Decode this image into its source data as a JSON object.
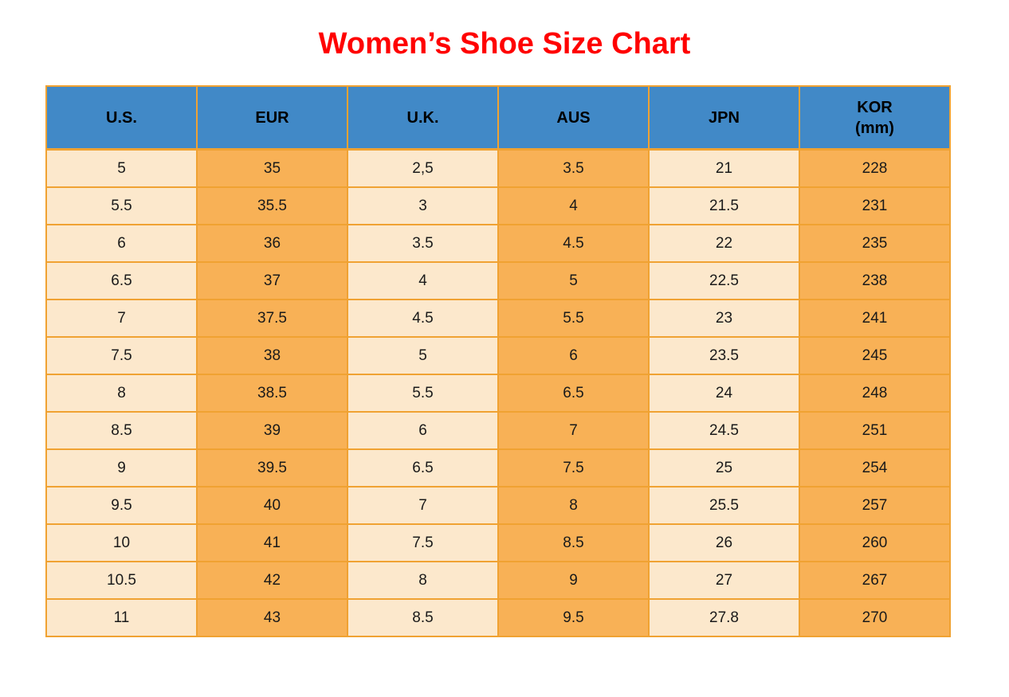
{
  "title": "Women’s Shoe Size Chart",
  "colors": {
    "title": "#FF0000",
    "header_bg": "#4189C7",
    "header_text": "#000000",
    "cell_orange": "#F8B156",
    "cell_cream": "#FCE8CC",
    "border": "#F0A232",
    "cell_text": "#1A1A1A",
    "page_bg": "#FFFFFF"
  },
  "chart_data": {
    "type": "table",
    "title": "Women’s Shoe Size Chart",
    "columns": [
      "U.S.",
      "EUR",
      "U.K.",
      "AUS",
      "JPN",
      "KOR (mm)"
    ],
    "header_lines": [
      [
        "U.S."
      ],
      [
        "EUR"
      ],
      [
        "U.K."
      ],
      [
        "AUS"
      ],
      [
        "JPN"
      ],
      [
        "KOR",
        "(mm)"
      ]
    ],
    "column_tones": [
      "cream",
      "orange",
      "cream",
      "orange",
      "cream",
      "orange"
    ],
    "rows": [
      [
        "5",
        "35",
        "2,5",
        "3.5",
        "21",
        "228"
      ],
      [
        "5.5",
        "35.5",
        "3",
        "4",
        "21.5",
        "231"
      ],
      [
        "6",
        "36",
        "3.5",
        "4.5",
        "22",
        "235"
      ],
      [
        "6.5",
        "37",
        "4",
        "5",
        "22.5",
        "238"
      ],
      [
        "7",
        "37.5",
        "4.5",
        "5.5",
        "23",
        "241"
      ],
      [
        "7.5",
        "38",
        "5",
        "6",
        "23.5",
        "245"
      ],
      [
        "8",
        "38.5",
        "5.5",
        "6.5",
        "24",
        "248"
      ],
      [
        "8.5",
        "39",
        "6",
        "7",
        "24.5",
        "251"
      ],
      [
        "9",
        "39.5",
        "6.5",
        "7.5",
        "25",
        "254"
      ],
      [
        "9.5",
        "40",
        "7",
        "8",
        "25.5",
        "257"
      ],
      [
        "10",
        "41",
        "7.5",
        "8.5",
        "26",
        "260"
      ],
      [
        "10.5",
        "42",
        "8",
        "9",
        "27",
        "267"
      ],
      [
        "11",
        "43",
        "8.5",
        "9.5",
        "27.8",
        "270"
      ]
    ]
  }
}
